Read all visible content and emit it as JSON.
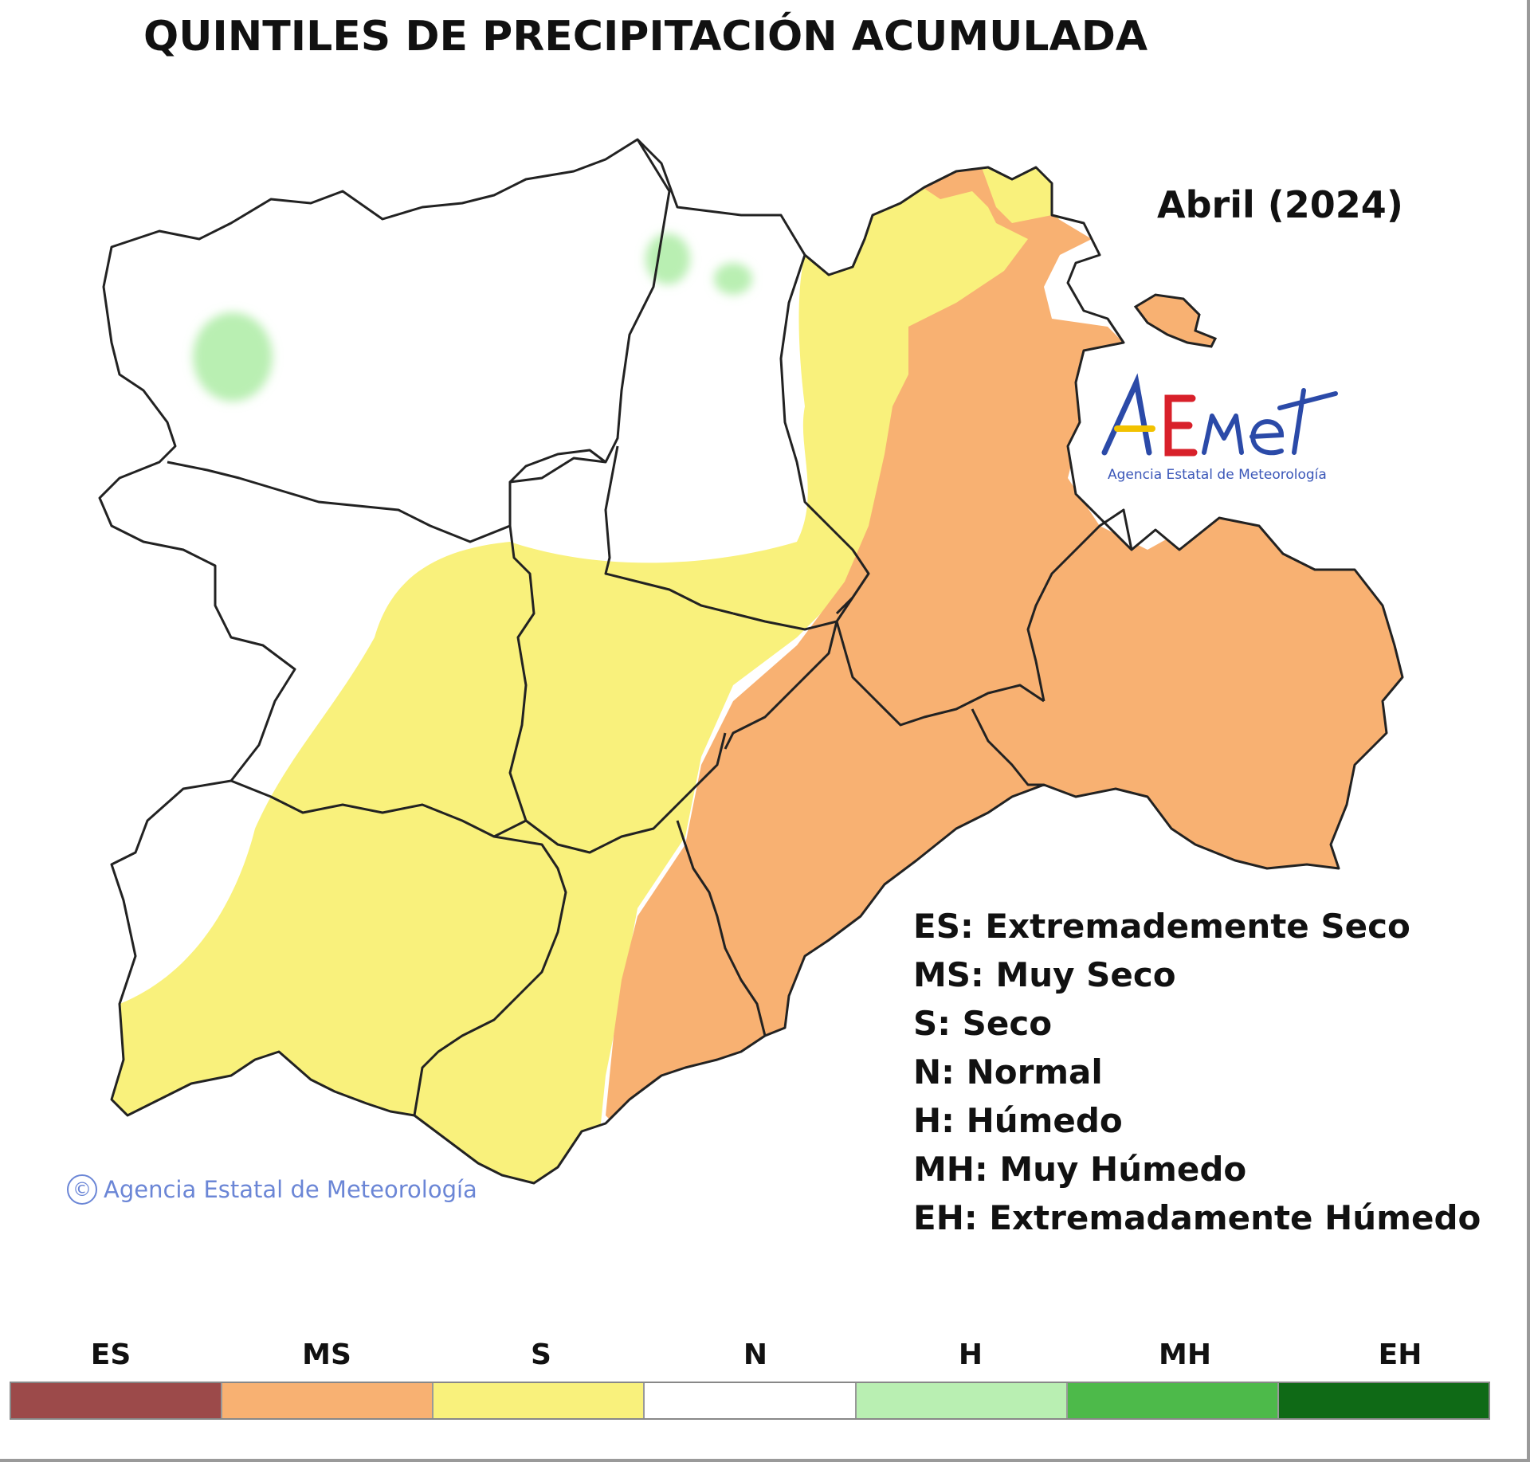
{
  "title": "QUINTILES DE PRECIPITACIÓN ACUMULADA",
  "period": "Abril (2024)",
  "logo": {
    "text": "AEMet",
    "subtitle": "Agencia Estatal de Meteorología"
  },
  "copyright": "Agencia Estatal de Meteorología",
  "legend_items": [
    "ES: Extremademente Seco",
    "MS: Muy Seco",
    "S: Seco",
    "N: Normal",
    "H: Húmedo",
    "MH: Muy Húmedo",
    "EH: Extremadamente Húmedo"
  ],
  "colorbar": [
    {
      "code": "ES",
      "color": "#9c4a4a"
    },
    {
      "code": "MS",
      "color": "#f8b172"
    },
    {
      "code": "S",
      "color": "#f9f17c"
    },
    {
      "code": "N",
      "color": "#ffffff"
    },
    {
      "code": "H",
      "color": "#b9efb2"
    },
    {
      "code": "MH",
      "color": "#4dba4a"
    },
    {
      "code": "EH",
      "color": "#0f6a16"
    }
  ],
  "colors": {
    "muy_seco": "#f8b172",
    "seco": "#f9f17c",
    "normal": "#ffffff",
    "humedo": "#b9efb2",
    "border": "#222222"
  }
}
